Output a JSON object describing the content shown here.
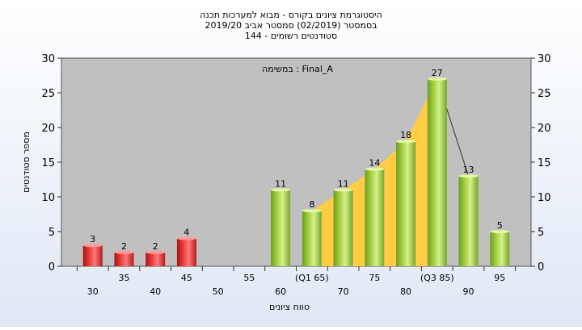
{
  "titles": [
    "היסטוגרמת ציונים בקורס - מבוא למערכות תכנה",
    "בסמסטר  (02/2019)  סמסטר אביב 2019/20",
    "סטודנטים רשומים - 144"
  ],
  "chart_data": {
    "type": "bar",
    "title": [
      "היסטוגרמת ציונים בקורס - מבוא למערכות תכנה",
      "בסמסטר  (02/2019)  סמסטר אביב 2019/20",
      "סטודנטים רשומים - 144"
    ],
    "annotation": "במשימה : Final_A",
    "xlabel": "טווח ציונים",
    "ylabel": "מספר סטודנטים",
    "ylim": [
      0,
      30
    ],
    "yticks": [
      0,
      5,
      10,
      15,
      20,
      25,
      30
    ],
    "y_axis_sides": "both",
    "grid": false,
    "background": "#c0c0c0",
    "categories": [
      "30",
      "35",
      "40",
      "45",
      "50",
      "55",
      "60",
      "(Q1 65)",
      "70",
      "75",
      "80",
      "(Q3 85)",
      "90",
      "95"
    ],
    "values": [
      3,
      2,
      2,
      4,
      0,
      0,
      11,
      8,
      11,
      14,
      18,
      27,
      13,
      5
    ],
    "data_labels": [
      "3",
      "2",
      "2",
      "4",
      "",
      "",
      "11",
      "8",
      "11",
      "14",
      "18",
      "27",
      "13",
      "5"
    ],
    "bar_colors": [
      "red",
      "red",
      "red",
      "red",
      "",
      "",
      "green",
      "green",
      "green",
      "green",
      "green",
      "green",
      "green",
      "green"
    ],
    "highlight_area": {
      "from": "(Q1 65)",
      "to": "(Q3 85)",
      "color": "#ffcc44"
    },
    "colors": {
      "red": "#e22a2a",
      "green": "#9ccc3c",
      "area": "#ffcc44"
    }
  }
}
